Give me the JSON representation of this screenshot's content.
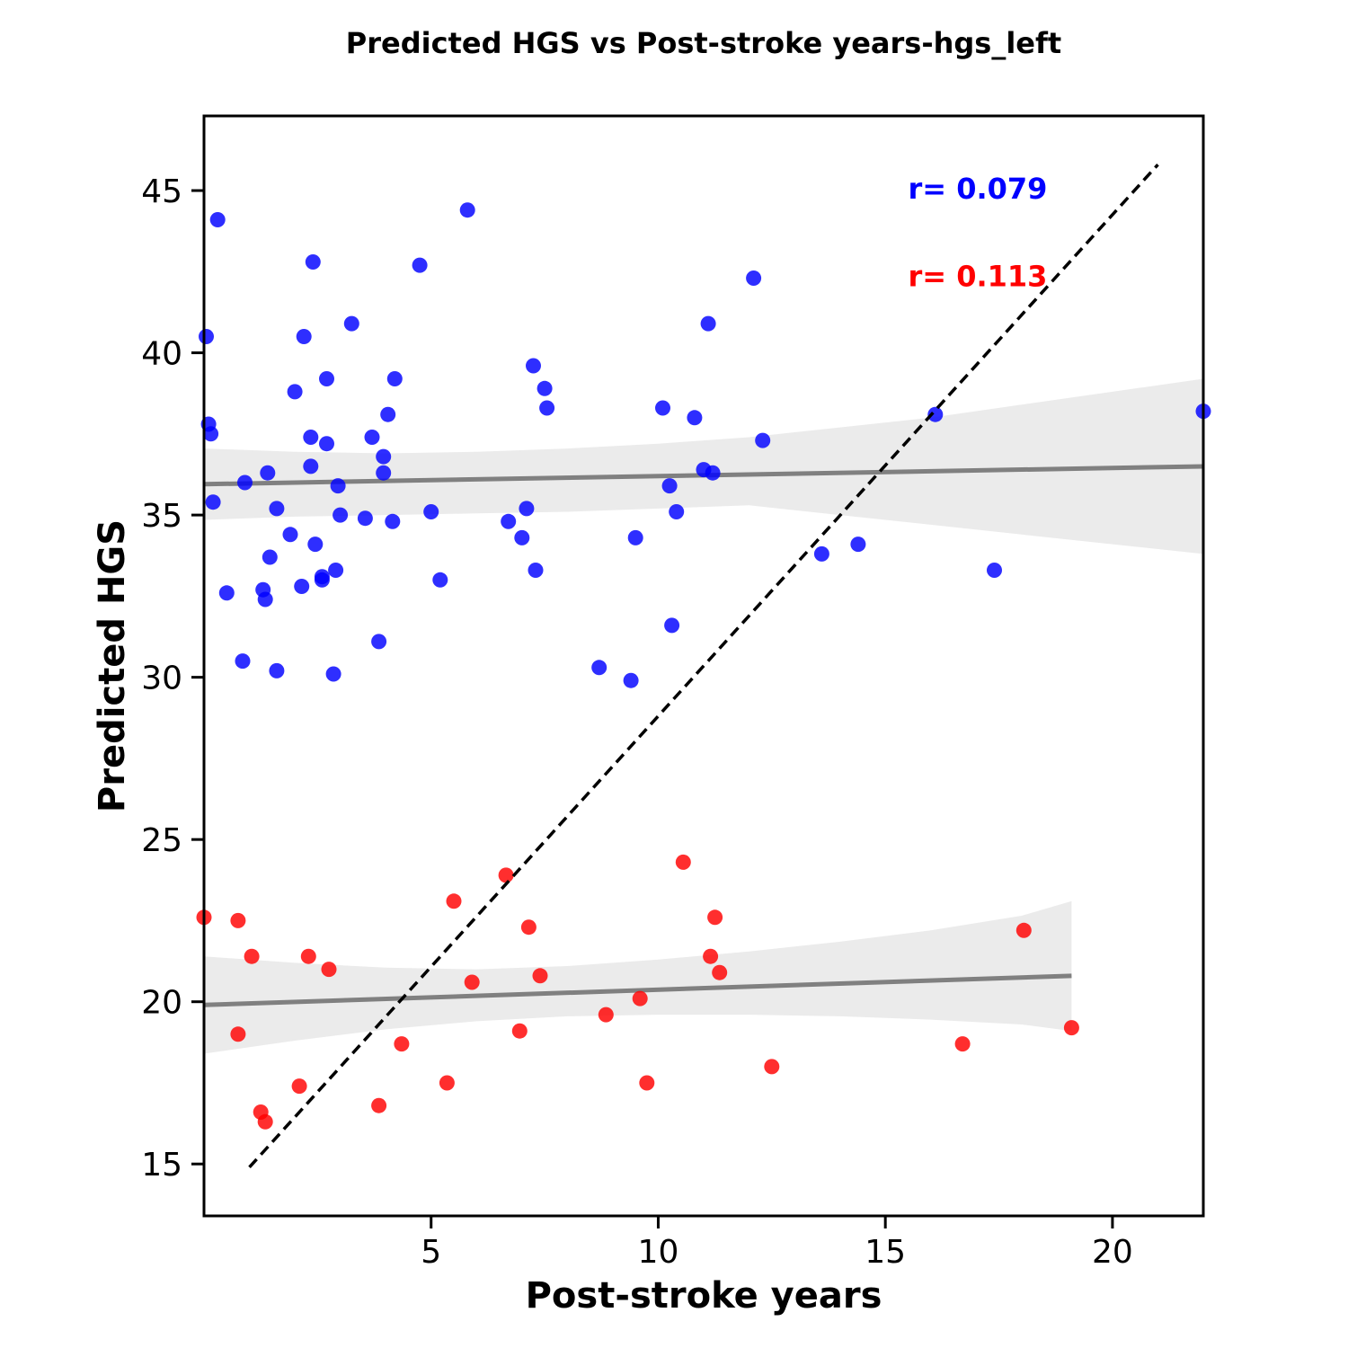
{
  "chart_data": {
    "type": "scatter",
    "title": "Predicted HGS vs Post-stroke years-hgs_left",
    "xlabel": "Post-stroke years",
    "ylabel": "Predicted HGS",
    "xlim": [
      0,
      22
    ],
    "ylim": [
      13.4,
      47.3
    ],
    "x_ticks": [
      5,
      10,
      15,
      20
    ],
    "y_ticks": [
      15,
      20,
      25,
      30,
      35,
      40,
      45
    ],
    "grid": false,
    "annotations": [
      {
        "text": "r= 0.079",
        "color": "#0000ff",
        "x": 15.5,
        "y": 45.0
      },
      {
        "text": "r= 0.113",
        "color": "#ff0000",
        "x": 15.5,
        "y": 42.3
      }
    ],
    "identity_line": {
      "x": [
        1.0,
        21.0
      ],
      "y": [
        14.9,
        45.8
      ],
      "style": "dashed",
      "color": "#000000"
    },
    "series": [
      {
        "color": "#0000ff",
        "points": [
          [
            0.05,
            40.5
          ],
          [
            0.1,
            37.8
          ],
          [
            0.15,
            37.5
          ],
          [
            0.2,
            35.4
          ],
          [
            0.3,
            44.1
          ],
          [
            0.5,
            32.6
          ],
          [
            0.85,
            30.5
          ],
          [
            0.9,
            36.0
          ],
          [
            1.3,
            32.7
          ],
          [
            1.35,
            32.4
          ],
          [
            1.4,
            36.3
          ],
          [
            1.45,
            33.7
          ],
          [
            1.6,
            35.2
          ],
          [
            1.6,
            30.2
          ],
          [
            1.9,
            34.4
          ],
          [
            2.0,
            38.8
          ],
          [
            2.15,
            32.8
          ],
          [
            2.2,
            40.5
          ],
          [
            2.35,
            37.4
          ],
          [
            2.35,
            36.5
          ],
          [
            2.4,
            42.8
          ],
          [
            2.45,
            34.1
          ],
          [
            2.6,
            33.1
          ],
          [
            2.6,
            33.0
          ],
          [
            2.7,
            39.2
          ],
          [
            2.7,
            37.2
          ],
          [
            2.85,
            30.1
          ],
          [
            2.9,
            33.3
          ],
          [
            2.95,
            35.9
          ],
          [
            3.0,
            35.0
          ],
          [
            3.25,
            40.9
          ],
          [
            3.55,
            34.9
          ],
          [
            3.7,
            37.4
          ],
          [
            3.85,
            31.1
          ],
          [
            3.95,
            36.8
          ],
          [
            3.95,
            36.3
          ],
          [
            4.05,
            38.1
          ],
          [
            4.15,
            34.8
          ],
          [
            4.2,
            39.2
          ],
          [
            4.75,
            42.7
          ],
          [
            5.0,
            35.1
          ],
          [
            5.2,
            33.0
          ],
          [
            5.8,
            44.4
          ],
          [
            6.7,
            34.8
          ],
          [
            7.0,
            34.3
          ],
          [
            7.1,
            35.2
          ],
          [
            7.25,
            39.6
          ],
          [
            7.3,
            33.3
          ],
          [
            7.5,
            38.9
          ],
          [
            7.55,
            38.3
          ],
          [
            8.7,
            30.3
          ],
          [
            9.4,
            29.9
          ],
          [
            9.5,
            34.3
          ],
          [
            10.1,
            38.3
          ],
          [
            10.25,
            35.9
          ],
          [
            10.3,
            31.6
          ],
          [
            10.4,
            35.1
          ],
          [
            10.8,
            38.0
          ],
          [
            11.0,
            36.4
          ],
          [
            11.1,
            40.9
          ],
          [
            11.2,
            36.3
          ],
          [
            12.1,
            42.3
          ],
          [
            12.3,
            37.3
          ],
          [
            13.6,
            33.8
          ],
          [
            14.4,
            34.1
          ],
          [
            16.1,
            38.1
          ],
          [
            17.4,
            33.3
          ],
          [
            22.0,
            38.2
          ]
        ],
        "regression": {
          "x": [
            0,
            22
          ],
          "y": [
            35.95,
            36.5
          ]
        },
        "ci_band": {
          "x": [
            0,
            2,
            4,
            6,
            8,
            10,
            12,
            14,
            16,
            18,
            20,
            22
          ],
          "upper": [
            37.05,
            36.95,
            36.9,
            36.95,
            37.05,
            37.2,
            37.4,
            37.7,
            38.0,
            38.4,
            38.8,
            39.2
          ],
          "lower": [
            34.85,
            34.95,
            35.0,
            35.05,
            35.1,
            35.2,
            35.3,
            35.0,
            34.7,
            34.4,
            34.1,
            33.8
          ]
        }
      },
      {
        "color": "#ff0000",
        "points": [
          [
            0.0,
            22.6
          ],
          [
            0.75,
            22.5
          ],
          [
            0.75,
            19.0
          ],
          [
            1.05,
            21.4
          ],
          [
            1.25,
            16.6
          ],
          [
            1.35,
            16.3
          ],
          [
            2.1,
            17.4
          ],
          [
            2.3,
            21.4
          ],
          [
            2.75,
            21.0
          ],
          [
            3.85,
            16.8
          ],
          [
            4.35,
            18.7
          ],
          [
            5.35,
            17.5
          ],
          [
            5.5,
            23.1
          ],
          [
            5.9,
            20.6
          ],
          [
            6.65,
            23.9
          ],
          [
            6.95,
            19.1
          ],
          [
            7.15,
            22.3
          ],
          [
            7.4,
            20.8
          ],
          [
            8.85,
            19.6
          ],
          [
            9.6,
            20.1
          ],
          [
            9.75,
            17.5
          ],
          [
            10.55,
            24.3
          ],
          [
            11.15,
            21.4
          ],
          [
            11.25,
            22.6
          ],
          [
            11.35,
            20.9
          ],
          [
            12.5,
            18.0
          ],
          [
            16.7,
            18.7
          ],
          [
            18.05,
            22.2
          ],
          [
            19.1,
            19.2
          ]
        ],
        "regression": {
          "x": [
            0,
            19.1
          ],
          "y": [
            19.9,
            20.8
          ]
        },
        "ci_band": {
          "x": [
            0,
            2,
            4,
            6,
            8,
            10,
            12,
            14,
            16,
            18,
            19.1
          ],
          "upper": [
            21.4,
            21.2,
            21.05,
            21.0,
            21.1,
            21.3,
            21.55,
            21.85,
            22.2,
            22.65,
            23.1
          ],
          "lower": [
            18.4,
            18.8,
            19.15,
            19.4,
            19.55,
            19.6,
            19.6,
            19.55,
            19.45,
            19.3,
            19.1
          ]
        }
      }
    ]
  }
}
